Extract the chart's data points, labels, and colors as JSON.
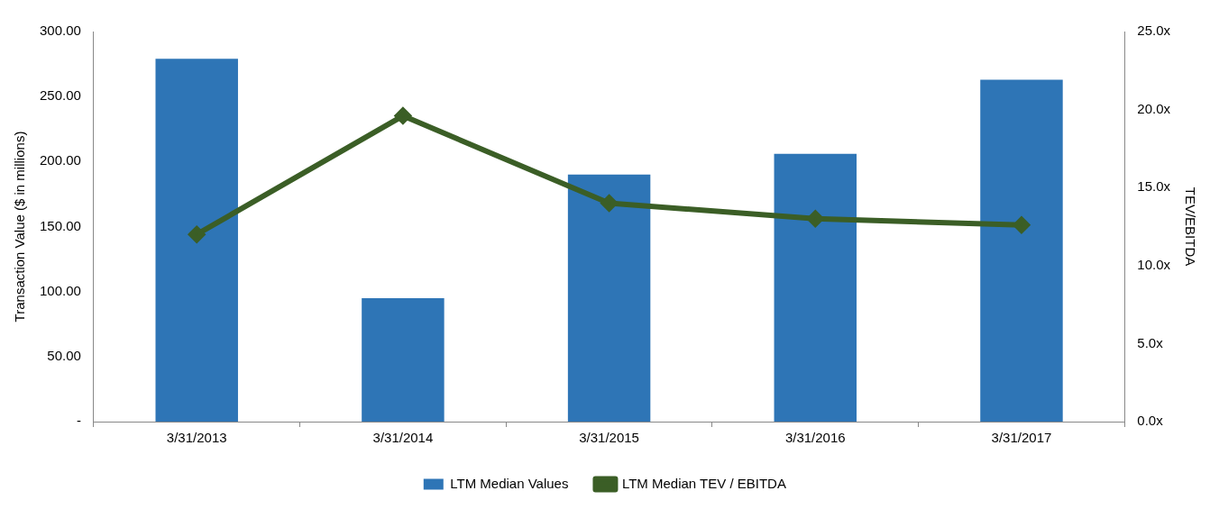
{
  "chart_data": {
    "type": "bar",
    "ylabel": "Transaction Value ($ in millions)",
    "y2label": "TEV/EBITDA",
    "categories": [
      "3/31/2013",
      "3/31/2014",
      "3/31/2015",
      "3/31/2016",
      "3/31/2017"
    ],
    "series": [
      {
        "name": "LTM Median Values",
        "color": "#2e75b6",
        "values": [
          279,
          95,
          190,
          206,
          263
        ]
      },
      {
        "name": "LTM Median TEV / EBITDA",
        "type": "line",
        "axis": "y2",
        "color": "#3b5e26",
        "values": [
          12.0,
          19.6,
          14.0,
          13.0,
          12.6
        ],
        "marker": "diamond",
        "line_style": "solid"
      }
    ],
    "ylim": [
      0,
      300
    ],
    "yticks": [
      {
        "value": 0,
        "label": "-"
      },
      {
        "value": 50,
        "label": "50.00"
      },
      {
        "value": 100,
        "label": "100.00"
      },
      {
        "value": 150,
        "label": "150.00"
      },
      {
        "value": 200,
        "label": "200.00"
      },
      {
        "value": 250,
        "label": "250.00"
      },
      {
        "value": 300,
        "label": "300.00"
      }
    ],
    "y2lim": [
      0,
      25
    ],
    "y2ticks": [
      {
        "value": 0,
        "label": "0.0x"
      },
      {
        "value": 5,
        "label": "5.0x"
      },
      {
        "value": 10,
        "label": "10.0x"
      },
      {
        "value": 15,
        "label": "15.0x"
      },
      {
        "value": 20,
        "label": "20.0x"
      },
      {
        "value": 25,
        "label": "25.0x"
      }
    ],
    "grid": false,
    "legend": "bottom"
  }
}
